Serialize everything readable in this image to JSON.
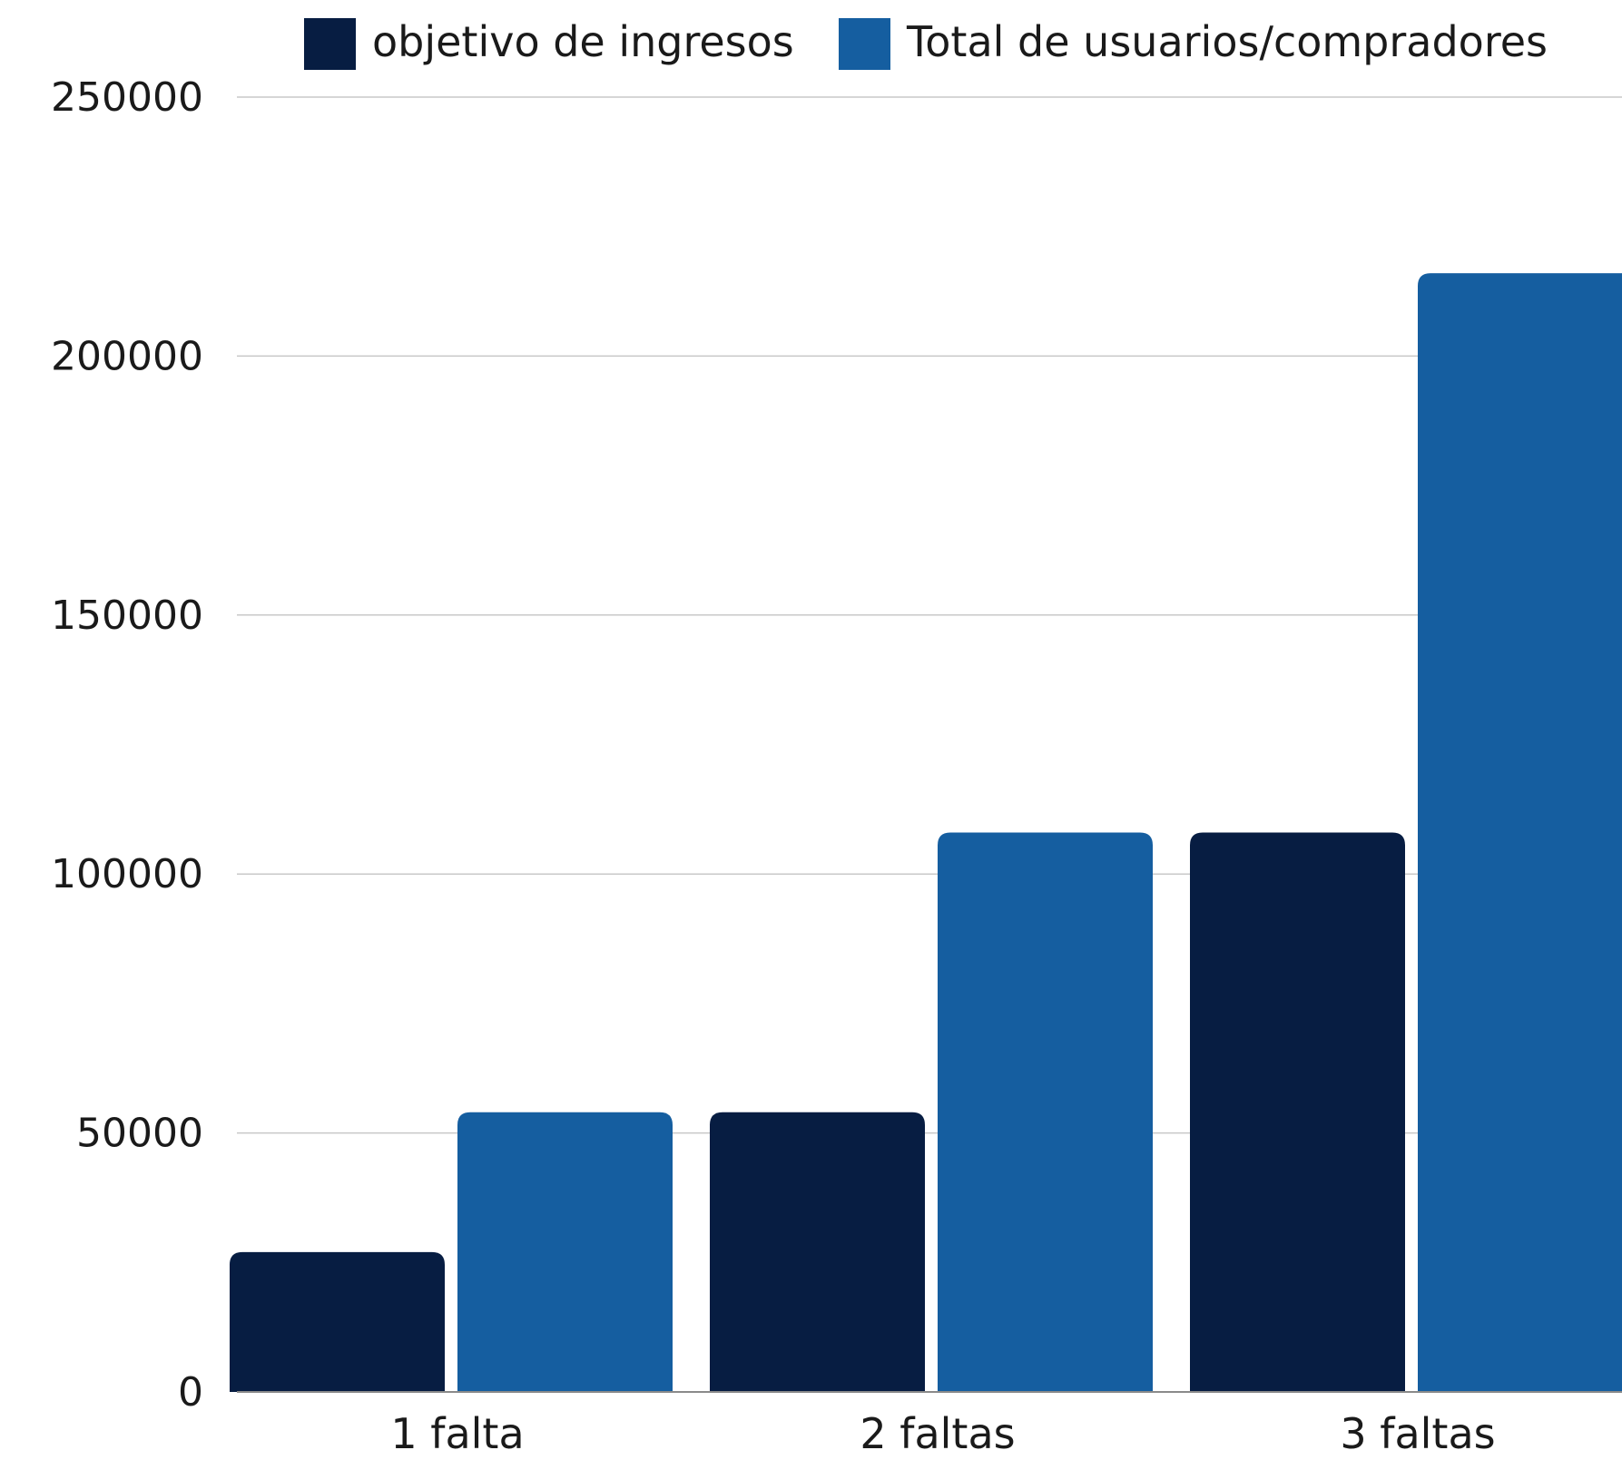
{
  "chart_data": {
    "type": "bar",
    "categories": [
      "1 falta",
      "2 faltas",
      "3 faltas"
    ],
    "series": [
      {
        "name": "objetivo de ingresos",
        "color": "#071d42",
        "values": [
          27000,
          54000,
          108000
        ]
      },
      {
        "name": "Total de usuarios/compradores",
        "color": "#155ea0",
        "values": [
          54000,
          108000,
          216000
        ]
      }
    ],
    "ylim": [
      0,
      250000
    ],
    "yticks": [
      "0",
      "50000",
      "100000",
      "150000",
      "200000",
      "250000"
    ],
    "grid": true,
    "legend_position": "top",
    "title": "",
    "xlabel": "",
    "ylabel": ""
  }
}
